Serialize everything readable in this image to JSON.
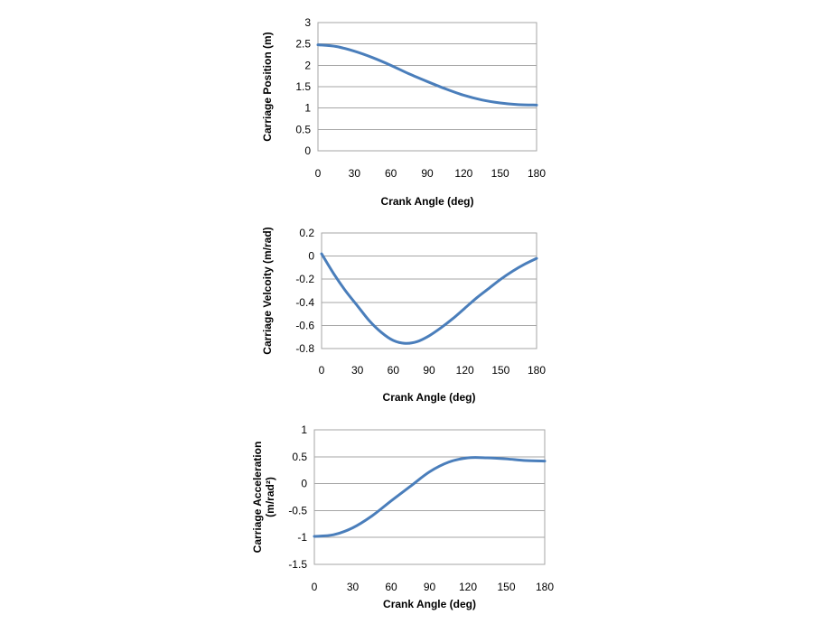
{
  "chart_data": [
    {
      "type": "line",
      "xlabel": "Crank Angle (deg)",
      "ylabel": "Carriage Position (m)",
      "xlim": [
        0,
        180
      ],
      "ylim": [
        0,
        3
      ],
      "xticks": [
        "0",
        "30",
        "60",
        "90",
        "120",
        "150",
        "180"
      ],
      "yticks": [
        "0",
        "0.5",
        "1",
        "1.5",
        "2",
        "2.5",
        "3"
      ],
      "grid": true,
      "series": [
        {
          "color": "#4a7ebb",
          "x": [
            0,
            15,
            30,
            45,
            60,
            75,
            90,
            105,
            120,
            135,
            150,
            165,
            180
          ],
          "y": [
            2.48,
            2.44,
            2.33,
            2.18,
            2.0,
            1.8,
            1.62,
            1.45,
            1.3,
            1.19,
            1.12,
            1.08,
            1.07
          ]
        }
      ]
    },
    {
      "type": "line",
      "xlabel": "Crank Angle (deg)",
      "ylabel": "Carriage Velcoity (m/rad)",
      "xlim": [
        0,
        180
      ],
      "ylim": [
        -0.8,
        0.2
      ],
      "xticks": [
        "0",
        "30",
        "60",
        "90",
        "120",
        "150",
        "180"
      ],
      "yticks": [
        "-0.8",
        "-0.6",
        "-0.4",
        "-0.2",
        "0",
        "0.2"
      ],
      "grid": true,
      "series": [
        {
          "color": "#4a7ebb",
          "x": [
            0,
            10,
            20,
            30,
            40,
            50,
            60,
            70,
            80,
            90,
            100,
            110,
            120,
            130,
            140,
            150,
            160,
            170,
            180
          ],
          "y": [
            0.02,
            -0.15,
            -0.3,
            -0.43,
            -0.56,
            -0.66,
            -0.73,
            -0.755,
            -0.74,
            -0.69,
            -0.62,
            -0.54,
            -0.45,
            -0.36,
            -0.28,
            -0.2,
            -0.13,
            -0.07,
            -0.02
          ]
        }
      ]
    },
    {
      "type": "line",
      "xlabel": "Crank Angle (deg)",
      "ylabel": "Carriage Acceleration (m/rad²)",
      "xlim": [
        0,
        180
      ],
      "ylim": [
        -1.5,
        1
      ],
      "xticks": [
        "0",
        "30",
        "60",
        "90",
        "120",
        "150",
        "180"
      ],
      "yticks": [
        "-1.5",
        "-1",
        "-0.5",
        "0",
        "0.5",
        "1"
      ],
      "grid": true,
      "series": [
        {
          "color": "#4a7ebb",
          "x": [
            0,
            15,
            30,
            45,
            60,
            75,
            90,
            105,
            120,
            135,
            150,
            165,
            180
          ],
          "y": [
            -0.98,
            -0.95,
            -0.82,
            -0.6,
            -0.32,
            -0.05,
            0.22,
            0.4,
            0.48,
            0.48,
            0.46,
            0.43,
            0.42
          ]
        }
      ]
    }
  ]
}
